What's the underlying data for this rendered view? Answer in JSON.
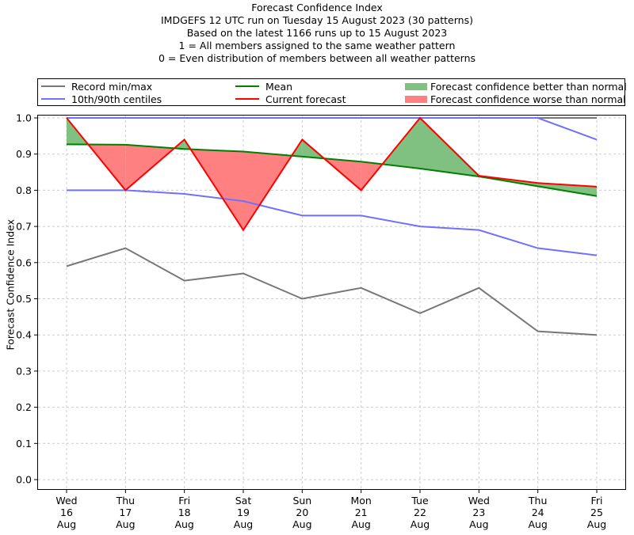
{
  "chart_data": {
    "type": "line",
    "title": "Forecast Confidence Index",
    "subtitles": [
      "IMDGEFS 12 UTC run on Tuesday 15 August 2023 (30 patterns)",
      "Based on the latest 1166 runs up to 15 August 2023",
      "1 = All members assigned to the same weather pattern",
      "0 = Even distribution of members between all weather patterns"
    ],
    "xlabel": "",
    "ylabel": "Forecast Confidence Index",
    "ylim": [
      0.0,
      1.0
    ],
    "yticks": [
      "0.0",
      "0.1",
      "0.2",
      "0.3",
      "0.4",
      "0.5",
      "0.6",
      "0.7",
      "0.8",
      "0.9",
      "1.0"
    ],
    "grid": true,
    "legend_placement": "top",
    "categories": [
      {
        "day": "Wed",
        "date": "16",
        "month": "Aug"
      },
      {
        "day": "Thu",
        "date": "17",
        "month": "Aug"
      },
      {
        "day": "Fri",
        "date": "18",
        "month": "Aug"
      },
      {
        "day": "Sat",
        "date": "19",
        "month": "Aug"
      },
      {
        "day": "Sun",
        "date": "20",
        "month": "Aug"
      },
      {
        "day": "Mon",
        "date": "21",
        "month": "Aug"
      },
      {
        "day": "Tue",
        "date": "22",
        "month": "Aug"
      },
      {
        "day": "Wed",
        "date": "23",
        "month": "Aug"
      },
      {
        "day": "Thu",
        "date": "24",
        "month": "Aug"
      },
      {
        "day": "Fri",
        "date": "25",
        "month": "Aug"
      }
    ],
    "series": [
      {
        "name": "Record min",
        "legend": "Record min/max",
        "color": "#777777",
        "values": [
          0.59,
          0.64,
          0.55,
          0.57,
          0.5,
          0.53,
          0.46,
          0.53,
          0.41,
          0.4
        ]
      },
      {
        "name": "Record max",
        "legend": "Record min/max",
        "color": "#777777",
        "values": [
          1.0,
          1.0,
          1.0,
          1.0,
          1.0,
          1.0,
          1.0,
          1.0,
          1.0,
          1.0
        ]
      },
      {
        "name": "10th centile",
        "legend": "10th/90th centiles",
        "color": "#7070ff",
        "values": [
          0.8,
          0.8,
          0.79,
          0.77,
          0.73,
          0.73,
          0.7,
          0.69,
          0.64,
          0.62
        ]
      },
      {
        "name": "90th centile",
        "legend": "10th/90th centiles",
        "color": "#7070ff",
        "values": [
          1.0,
          1.0,
          1.0,
          1.0,
          1.0,
          1.0,
          1.0,
          1.0,
          1.0,
          0.94
        ]
      },
      {
        "name": "Mean",
        "legend": "Mean",
        "color": "#008000",
        "values": [
          0.927,
          0.926,
          0.914,
          0.907,
          0.893,
          0.879,
          0.86,
          0.838,
          0.811,
          0.784
        ]
      },
      {
        "name": "Current forecast",
        "legend": "Current forecast",
        "color": "#ff0000",
        "values": [
          1.0,
          0.8,
          0.94,
          0.69,
          0.94,
          0.8,
          1.0,
          0.84,
          0.82,
          0.81
        ]
      }
    ],
    "fills": [
      {
        "name": "Forecast confidence better than normal",
        "color": "#80c080"
      },
      {
        "name": "Forecast confidence worse than normal",
        "color": "#ff8080"
      }
    ]
  },
  "legend": {
    "record": "Record min/max",
    "centiles": "10th/90th centiles",
    "mean": "Mean",
    "current": "Current forecast",
    "better": "Forecast confidence better than normal",
    "worse": "Forecast confidence worse than normal"
  }
}
